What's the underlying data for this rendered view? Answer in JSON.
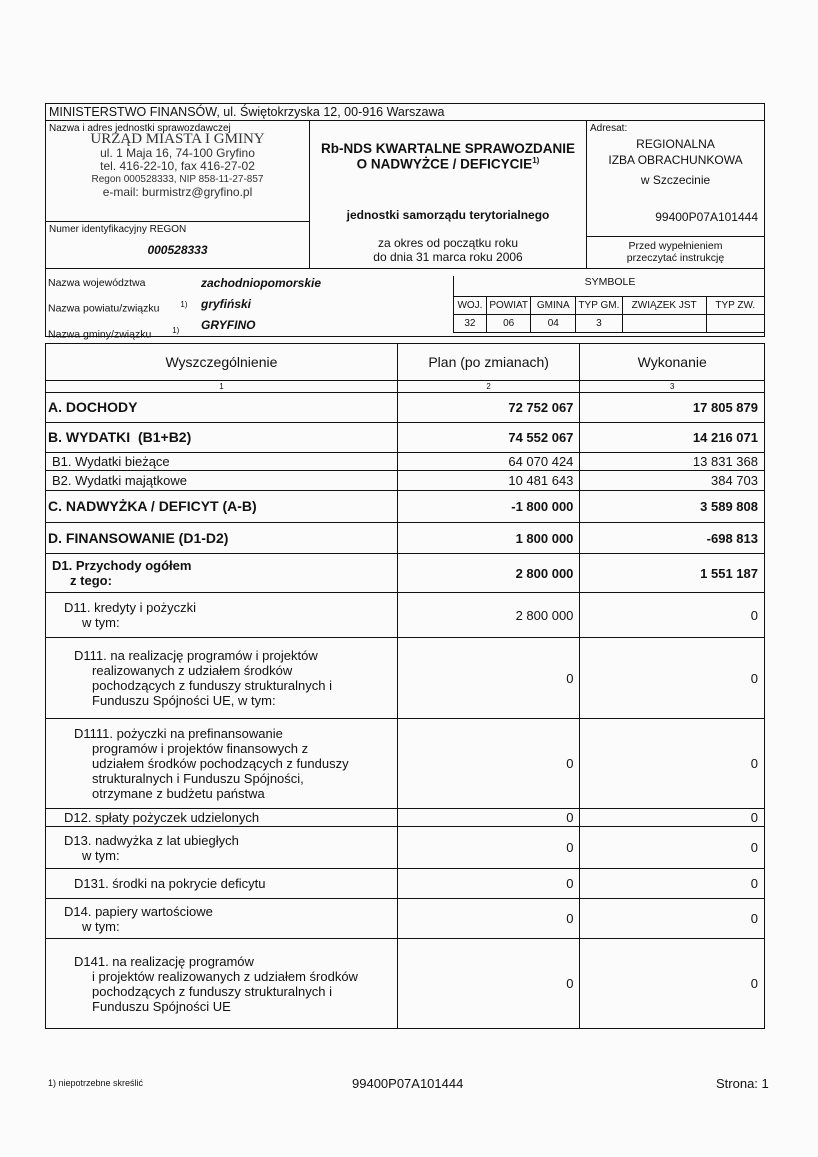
{
  "header": {
    "ministry": "MINISTERSTWO FINANSÓW, ul. Świętokrzyska 12, 00-916 Warszawa",
    "unit_label": "Nazwa i adres jednostki sprawozdawczej",
    "stamp": [
      "URZĄD MIASTA I GMINY",
      "ul. 1 Maja 16, 74-100 Gryfino",
      "tel. 416-22-10, fax 416-27-02",
      "Regon 000528333, NIP 858-11-27-857",
      "e-mail: burmistrz@gryfino.pl"
    ],
    "title_line1": "Rb-NDS KWARTALNE SPRAWOZDANIE",
    "title_line2": "O NADWYŻCE / DEFICYCIE",
    "title_sup": "1)",
    "subtitle": "jednostki samorządu terytorialnego",
    "period_line1": "za okres od początku roku",
    "period_line2": "do dnia 31 marca roku 2006",
    "addressee_label": "Adresat:",
    "addressee": [
      "REGIONALNA",
      "IZBA OBRACHUNKOWA",
      "w Szczecinie"
    ],
    "code": "99400P07A101444",
    "instruction": [
      "Przed wypełnieniem",
      "przeczytać instrukcję"
    ],
    "regon_label": "Numer identyfikacyjny REGON",
    "regon": "000528333",
    "voivodeship_label": "Nazwa województwa",
    "voivodeship": "zachodniopomorskie",
    "county_label": "Nazwa powiatu/związku",
    "county": "gryfiński",
    "commune_label": "Nazwa gminy/związku",
    "commune": "GRYFINO",
    "sup": "1)"
  },
  "symbols": {
    "title": "SYMBOLE",
    "headers": [
      "WOJ.",
      "POWIAT",
      "GMINA",
      "TYP GM.",
      "ZWIĄZEK JST",
      "TYP ZW."
    ],
    "values": [
      "32",
      "06",
      "04",
      "3",
      "",
      ""
    ]
  },
  "table": {
    "headers": [
      "Wyszczególnienie",
      "Plan (po zmianach)",
      "Wykonanie"
    ],
    "index": [
      "1",
      "2",
      "3"
    ],
    "rows": [
      {
        "label": "A. DOCHODY",
        "plan": "72 752 067",
        "exec": "17 805 879",
        "bold": true,
        "indent": 0
      },
      {
        "label": "B. WYDATKI  (B1+B2)",
        "plan": "74 552 067",
        "exec": "14 216 071",
        "bold": true,
        "indent": 0
      },
      {
        "label": "B1. Wydatki bieżące",
        "plan": "64 070 424",
        "exec": "13 831 368",
        "bold": false,
        "indent": 1
      },
      {
        "label": "B2. Wydatki majątkowe",
        "plan": "10 481 643",
        "exec": "384 703",
        "bold": false,
        "indent": 1
      },
      {
        "label": "C. NADWYŻKA / DEFICYT (A-B)",
        "plan": "-1 800 000",
        "exec": "3 589 808",
        "bold": true,
        "indent": 0
      },
      {
        "label": "D. FINANSOWANIE (D1-D2)",
        "plan": "1 800 000",
        "exec": "-698 813",
        "bold": true,
        "indent": 0
      },
      {
        "label": "D1. Przychody ogółem\n     z tego:",
        "plan": "2 800 000",
        "exec": "1 551 187",
        "bold": true,
        "indent": 1
      },
      {
        "label": "D11. kredyty i pożyczki\n     w tym:",
        "plan": "2 800 000",
        "exec": "0",
        "bold": false,
        "indent": 2
      },
      {
        "label": "D111. na realizację programów i projektów\n     realizowanych z udziałem środków\n     pochodzących z funduszy strukturalnych i\n     Funduszu Spójności UE, w tym:",
        "plan": "0",
        "exec": "0",
        "bold": false,
        "indent": 3
      },
      {
        "label": "D1111. pożyczki na prefinansowanie\n     programów i projektów finansowych z\n     udziałem środków pochodzących z funduszy\n     strukturalnych i Funduszu Spójności,\n     otrzymane z budżetu państwa",
        "plan": "0",
        "exec": "0",
        "bold": false,
        "indent": 3
      },
      {
        "label": "D12. spłaty pożyczek udzielonych",
        "plan": "0",
        "exec": "0",
        "bold": false,
        "indent": 2
      },
      {
        "label": "D13. nadwyżka z lat ubiegłych\n     w tym:",
        "plan": "0",
        "exec": "0",
        "bold": false,
        "indent": 2
      },
      {
        "label": "D131. środki na pokrycie deficytu",
        "plan": "0",
        "exec": "0",
        "bold": false,
        "indent": 3
      },
      {
        "label": "D14. papiery wartościowe\n     w tym:",
        "plan": "0",
        "exec": "0",
        "bold": false,
        "indent": 2
      },
      {
        "label": "D141. na realizację programów\n     i projektów realizowanych z udziałem środków\n     pochodzących z funduszy strukturalnych i\n     Funduszu Spójności UE",
        "plan": "0",
        "exec": "0",
        "bold": false,
        "indent": 3
      }
    ]
  },
  "footer": {
    "note": "1) niepotrzebne skreślić",
    "code": "99400P07A101444",
    "page": "Strona: 1"
  }
}
